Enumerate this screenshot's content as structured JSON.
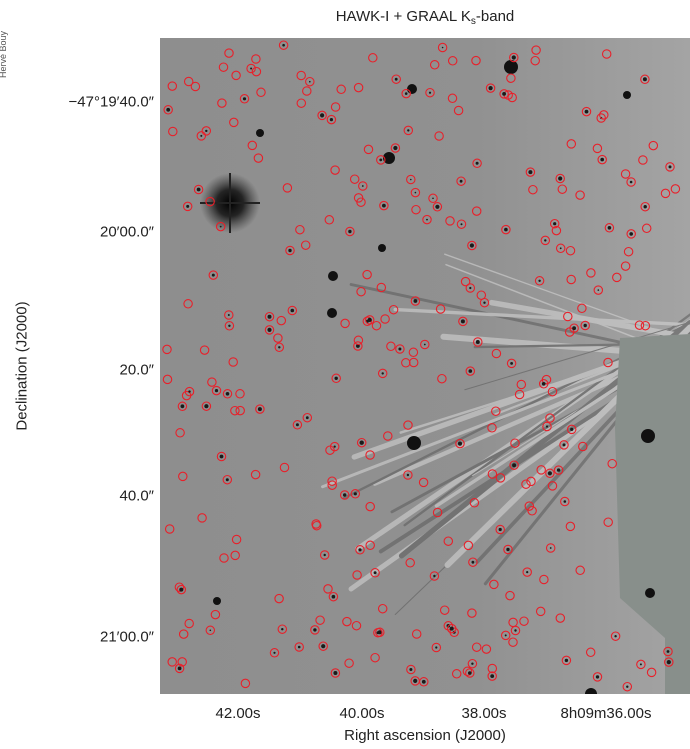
{
  "figure": {
    "title_main": "HAWK-I + GRAAL K",
    "title_sub": "s",
    "title_tail": "-band",
    "corner_credit": "Hervé Bouy",
    "x_axis_label": "Right ascension (J2000)",
    "y_axis_label": "Declination (J2000)",
    "y_ticks": [
      "−47°19′40.0″",
      "20′00.0″",
      "20.0″",
      "40.0″",
      "21′00.0″"
    ],
    "x_ticks": [
      "42.00s",
      "40.00s",
      "38.00s",
      "8h09m36.00s"
    ],
    "colors": {
      "sky": "#8d8d8d",
      "marker": "#e8202a",
      "masked_region": "#8a918d",
      "star": "#111111"
    }
  }
}
